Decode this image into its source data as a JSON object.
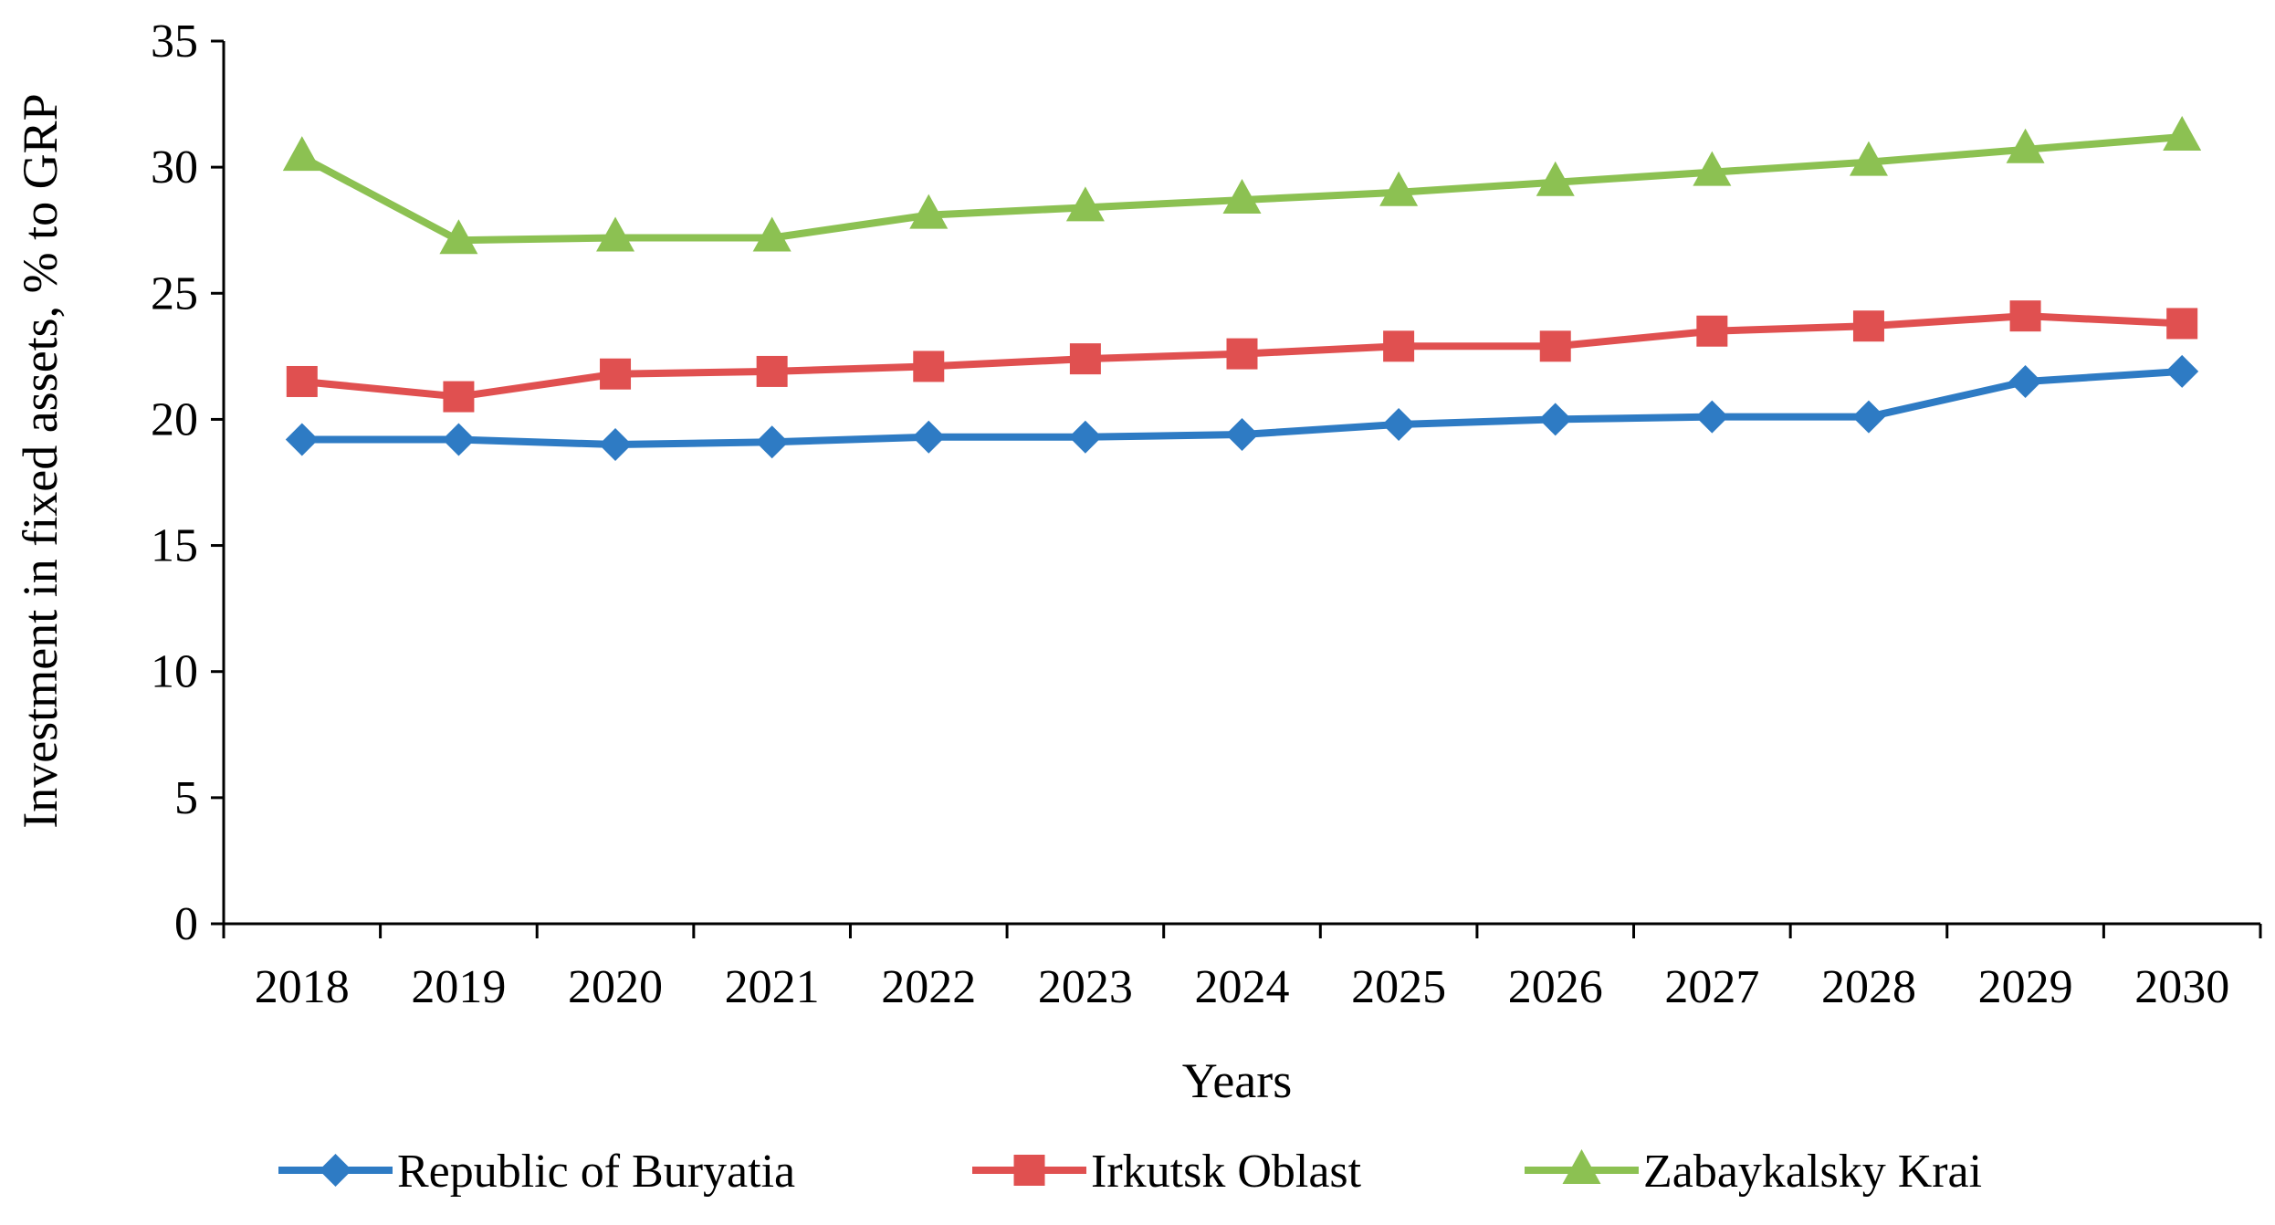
{
  "chart_data": {
    "type": "line",
    "title": "",
    "xlabel": "Years",
    "ylabel": "Investment in fixed assets, % to GRP",
    "x": [
      "2018",
      "2019",
      "2020",
      "2021",
      "2022",
      "2023",
      "2024",
      "2025",
      "2026",
      "2027",
      "2028",
      "2029",
      "2030"
    ],
    "ylim": [
      0,
      35
    ],
    "yticks": [
      "0",
      "5",
      "10",
      "15",
      "20",
      "25",
      "30",
      "35"
    ],
    "grid": false,
    "legend_position": "bottom",
    "series": [
      {
        "name": "Republic of Buryatia",
        "color": "#2e7bc4",
        "marker": "diamond",
        "values": [
          19.2,
          19.2,
          19.0,
          19.1,
          19.3,
          19.3,
          19.4,
          19.8,
          20.0,
          20.1,
          20.1,
          21.5,
          21.9
        ]
      },
      {
        "name": "Irkutsk Oblast",
        "color": "#e05050",
        "marker": "square",
        "values": [
          21.5,
          20.9,
          21.8,
          21.9,
          22.1,
          22.4,
          22.6,
          22.9,
          22.9,
          23.5,
          23.7,
          24.1,
          23.8
        ]
      },
      {
        "name": "Zabaykalsky Krai",
        "color": "#8cc152",
        "marker": "triangle",
        "values": [
          30.4,
          27.1,
          27.2,
          27.2,
          28.1,
          28.4,
          28.7,
          29.0,
          29.4,
          29.8,
          30.2,
          30.7,
          31.2
        ]
      }
    ]
  }
}
